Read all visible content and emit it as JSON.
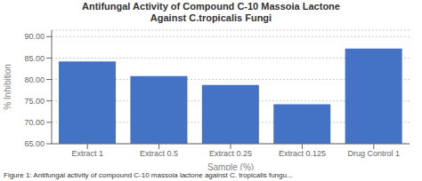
{
  "chart_data": {
    "type": "bar",
    "title": "Antifungal Activity of Compound C-10 Massoia Lactone",
    "subtitle": "Against C.tropicalis Fungi",
    "caption": "Figure 1: Antifungal activity of compound C-10 massoia lactone against C. tropicalis fungu...",
    "categories": [
      "Extract 1",
      "Extract 0.5",
      "Extract 0.25",
      "Extract 0.125",
      "Drug Control 1"
    ],
    "values": [
      84.2,
      80.8,
      78.7,
      74.2,
      87.2
    ],
    "color": "#4472C4",
    "xlabel": "Sample (%)",
    "ylabel": "% Inhibition",
    "ylim": [
      65.0,
      91.5
    ],
    "yticks": [
      {
        "value": 65,
        "label": "65.00"
      },
      {
        "value": 70,
        "label": "70.00"
      },
      {
        "value": 75,
        "label": "75.00"
      },
      {
        "value": 80,
        "label": "80.00"
      },
      {
        "value": 85,
        "label": "85.00"
      },
      {
        "value": 90,
        "label": "90.00"
      }
    ],
    "grid": true
  }
}
